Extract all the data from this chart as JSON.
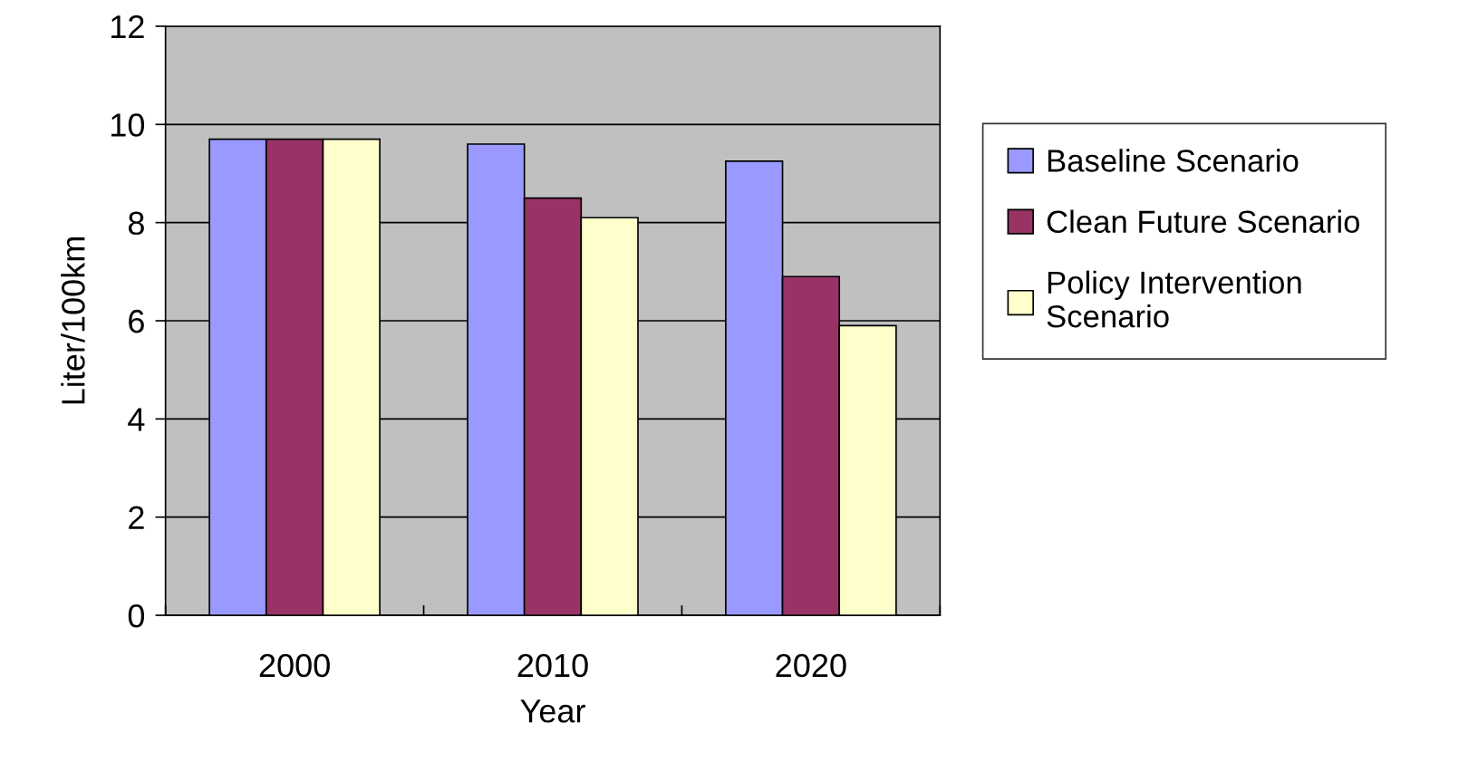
{
  "chart_data": {
    "type": "bar",
    "xlabel": "Year",
    "ylabel": "Liter/100km",
    "categories": [
      "2000",
      "2010",
      "2020"
    ],
    "series": [
      {
        "name": "Baseline Scenario",
        "color": "#9999ff",
        "values": [
          9.7,
          9.6,
          9.25
        ]
      },
      {
        "name": "Clean Future Scenario",
        "color": "#993366",
        "values": [
          9.7,
          8.5,
          6.9
        ]
      },
      {
        "name": "Policy Intervention\nScenario",
        "color": "#ffffcc",
        "values": [
          9.7,
          8.1,
          5.9
        ]
      }
    ],
    "ylim": [
      0,
      12
    ],
    "yticks": [
      0,
      2,
      4,
      6,
      8,
      10,
      12
    ],
    "grid": "y",
    "legend": "right"
  }
}
